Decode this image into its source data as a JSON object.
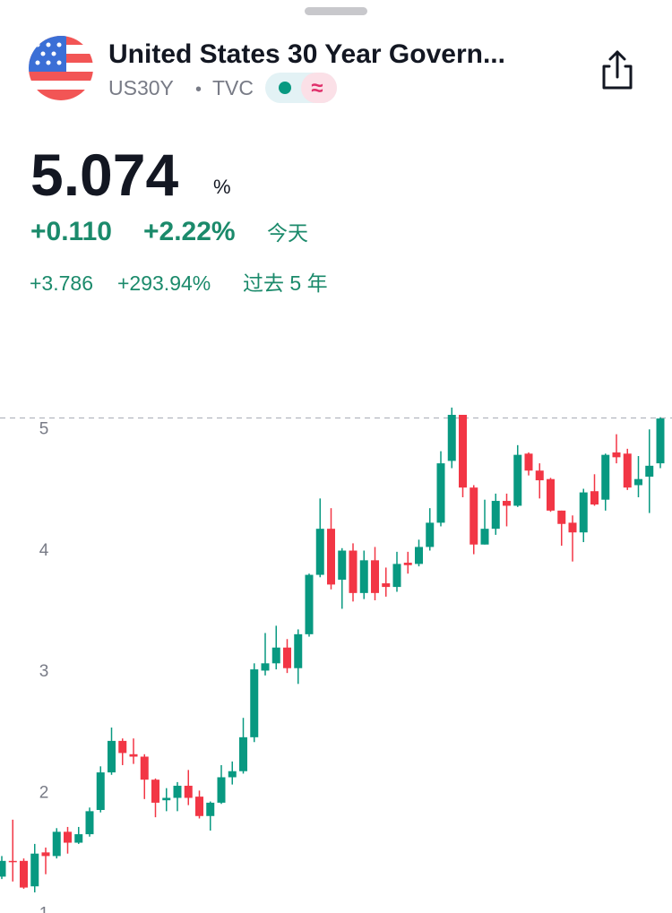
{
  "header": {
    "title": "United States 30 Year Govern...",
    "symbol": "US30Y",
    "separator": "•",
    "exchange": "TVC",
    "badge": "≈",
    "price": 5.074,
    "unit": "%",
    "change": "+0.110",
    "change_pct": "+2.22%",
    "change_period": "今天",
    "change_5y": "+3.786",
    "change_5y_pct": "+293.94%",
    "change_5y_period": "过去 5 年"
  },
  "chart_data": {
    "type": "candlestick",
    "up_color": "#089981",
    "down_color": "#f23645",
    "open": [
      1.29,
      1.42,
      1.42,
      1.21,
      1.49,
      1.46,
      1.66,
      1.57,
      1.64,
      1.84,
      2.15,
      2.41,
      2.3,
      2.28,
      2.09,
      1.92,
      1.94,
      2.04,
      1.95,
      1.79,
      1.9,
      2.11,
      2.16,
      2.44,
      2.99,
      3.05,
      3.18,
      3.01,
      3.29,
      3.78,
      4.16,
      3.74,
      3.98,
      3.63,
      3.9,
      3.71,
      3.68,
      3.88,
      3.87,
      4.01,
      4.21,
      4.72,
      5.1,
      4.5,
      4.03,
      4.16,
      4.39,
      4.35,
      4.78,
      4.64,
      4.57,
      4.31,
      4.21,
      4.13,
      4.47,
      4.4,
      4.79,
      4.78,
      4.52,
      4.59,
      4.7
    ],
    "high": [
      1.46,
      1.76,
      1.44,
      1.56,
      1.53,
      1.69,
      1.7,
      1.7,
      1.86,
      2.2,
      2.52,
      2.43,
      2.43,
      2.3,
      2.1,
      2.02,
      2.07,
      2.17,
      2.0,
      1.91,
      2.21,
      2.24,
      2.6,
      3.05,
      3.3,
      3.36,
      3.25,
      3.33,
      3.79,
      4.41,
      4.33,
      4.0,
      4.04,
      3.98,
      4.01,
      3.84,
      3.97,
      3.97,
      4.07,
      4.33,
      4.8,
      5.16,
      5.1,
      4.52,
      4.4,
      4.45,
      4.45,
      4.85,
      4.79,
      4.7,
      4.58,
      4.31,
      4.27,
      4.49,
      4.61,
      4.78,
      4.94,
      4.82,
      4.76,
      4.98,
      5.08
    ],
    "low": [
      1.27,
      1.25,
      1.19,
      1.16,
      1.31,
      1.44,
      1.48,
      1.56,
      1.62,
      1.82,
      2.13,
      2.21,
      2.22,
      1.93,
      1.78,
      1.83,
      1.83,
      1.88,
      1.77,
      1.67,
      1.89,
      2.05,
      2.14,
      2.4,
      2.95,
      3.0,
      2.97,
      2.88,
      3.27,
      3.76,
      3.66,
      3.5,
      3.56,
      3.58,
      3.57,
      3.6,
      3.64,
      3.79,
      3.85,
      3.98,
      4.18,
      4.66,
      4.42,
      3.95,
      4.03,
      4.11,
      4.18,
      4.34,
      4.6,
      4.41,
      4.3,
      4.02,
      3.89,
      4.05,
      4.35,
      4.31,
      4.7,
      4.48,
      4.42,
      4.29,
      4.66
    ],
    "close": [
      1.42,
      1.41,
      1.2,
      1.48,
      1.46,
      1.66,
      1.57,
      1.64,
      1.83,
      2.15,
      2.41,
      2.31,
      2.28,
      2.09,
      1.9,
      1.94,
      2.04,
      1.94,
      1.79,
      1.9,
      2.11,
      2.16,
      2.44,
      3.0,
      3.05,
      3.18,
      3.01,
      3.29,
      3.78,
      4.16,
      3.7,
      3.98,
      3.63,
      3.9,
      3.63,
      3.68,
      3.87,
      3.86,
      4.01,
      4.21,
      4.7,
      5.1,
      4.5,
      4.03,
      4.16,
      4.39,
      4.35,
      4.77,
      4.64,
      4.56,
      4.31,
      4.2,
      4.13,
      4.46,
      4.36,
      4.77,
      4.75,
      4.5,
      4.57,
      4.68,
      5.07
    ],
    "ylim": [
      0.99,
      5.27
    ],
    "yticks": [
      1,
      2,
      3,
      4,
      5
    ]
  }
}
